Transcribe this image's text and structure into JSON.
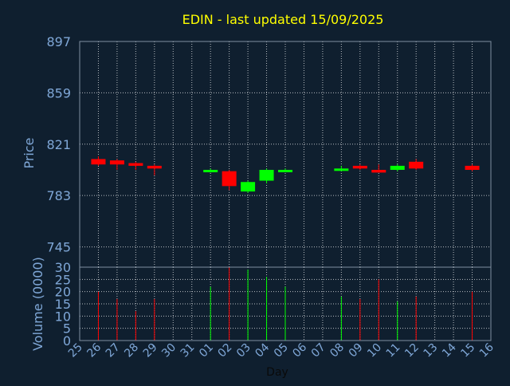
{
  "chart_data": [
    {
      "type": "candlestick",
      "title": "EDIN - last updated 15/09/2025",
      "ylabel": "Price",
      "ylim": [
        730,
        897
      ],
      "y_ticks": [
        897,
        859,
        821,
        783,
        745
      ],
      "grid": true,
      "x_categories": [
        "25",
        "26",
        "27",
        "28",
        "29",
        "30",
        "31",
        "01",
        "02",
        "03",
        "04",
        "05",
        "06",
        "07",
        "08",
        "09",
        "10",
        "11",
        "12",
        "13",
        "14",
        "15",
        "16"
      ],
      "candles": [
        {
          "day": "26",
          "open": 810,
          "close": 806,
          "high": 812,
          "low": 805
        },
        {
          "day": "27",
          "open": 809,
          "close": 806,
          "high": 810,
          "low": 802
        },
        {
          "day": "28",
          "open": 807,
          "close": 805,
          "high": 808,
          "low": 802
        },
        {
          "day": "29",
          "open": 805,
          "close": 803,
          "high": 806,
          "low": 798
        },
        {
          "day": "01",
          "open": 801,
          "close": 802,
          "high": 803,
          "low": 800
        },
        {
          "day": "02",
          "open": 801,
          "close": 790,
          "high": 802,
          "low": 787
        },
        {
          "day": "03",
          "open": 786,
          "close": 793,
          "high": 794,
          "low": 785
        },
        {
          "day": "04",
          "open": 794,
          "close": 802,
          "high": 803,
          "low": 792
        },
        {
          "day": "05",
          "open": 801,
          "close": 802,
          "high": 803,
          "low": 801
        },
        {
          "day": "08",
          "open": 802,
          "close": 803,
          "high": 805,
          "low": 801
        },
        {
          "day": "09",
          "open": 805,
          "close": 803,
          "high": 806,
          "low": 802
        },
        {
          "day": "10",
          "open": 802,
          "close": 800,
          "high": 806,
          "low": 800
        },
        {
          "day": "11",
          "open": 802,
          "close": 805,
          "high": 806,
          "low": 801
        },
        {
          "day": "12",
          "open": 808,
          "close": 803,
          "high": 810,
          "low": 802
        },
        {
          "day": "15",
          "open": 805,
          "close": 802,
          "high": 806,
          "low": 801
        }
      ],
      "colors": {
        "up": "#00ff00",
        "down": "#ff0000",
        "axis_text": "#7fa7d7",
        "title": "#ffff00",
        "grid": "#ffffff",
        "background": "#0f1f2f"
      }
    },
    {
      "type": "bar",
      "ylabel": "Volume (0000)",
      "xlabel": "Day",
      "ylim": [
        0,
        30
      ],
      "y_ticks": [
        30,
        25,
        20,
        15,
        10,
        5,
        0
      ],
      "grid": true,
      "categories": [
        "25",
        "26",
        "27",
        "28",
        "29",
        "30",
        "31",
        "01",
        "02",
        "03",
        "04",
        "05",
        "06",
        "07",
        "08",
        "09",
        "10",
        "11",
        "12",
        "13",
        "14",
        "15",
        "16"
      ],
      "bars": [
        {
          "day": "26",
          "value": 20,
          "direction": "down"
        },
        {
          "day": "27",
          "value": 17,
          "direction": "down"
        },
        {
          "day": "28",
          "value": 12,
          "direction": "down"
        },
        {
          "day": "29",
          "value": 17,
          "direction": "down"
        },
        {
          "day": "01",
          "value": 22,
          "direction": "up"
        },
        {
          "day": "02",
          "value": 30,
          "direction": "down"
        },
        {
          "day": "03",
          "value": 29,
          "direction": "up"
        },
        {
          "day": "04",
          "value": 26,
          "direction": "up"
        },
        {
          "day": "05",
          "value": 22,
          "direction": "up"
        },
        {
          "day": "08",
          "value": 18,
          "direction": "up"
        },
        {
          "day": "09",
          "value": 17,
          "direction": "down"
        },
        {
          "day": "10",
          "value": 25,
          "direction": "down"
        },
        {
          "day": "11",
          "value": 16,
          "direction": "up"
        },
        {
          "day": "12",
          "value": 18,
          "direction": "down"
        },
        {
          "day": "15",
          "value": 20,
          "direction": "down"
        }
      ]
    }
  ]
}
